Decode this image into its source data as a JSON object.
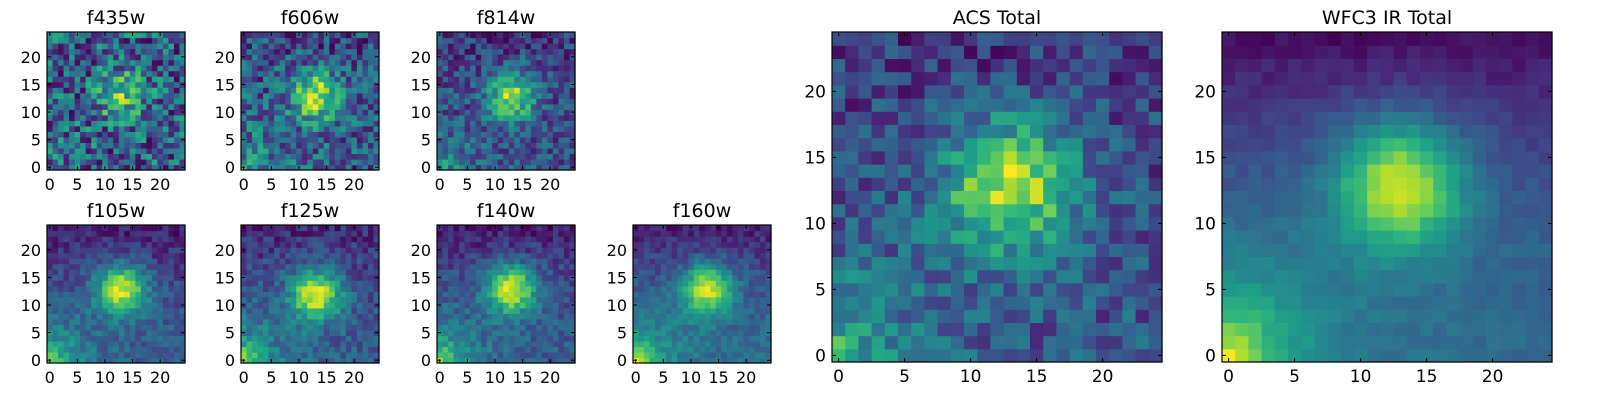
{
  "chart_data": [
    {
      "type": "heatmap",
      "title": "f435w",
      "xlim": [
        0,
        24
      ],
      "ylim": [
        0,
        24
      ],
      "xticks": [
        0,
        5,
        10,
        15,
        20
      ],
      "yticks": [
        0,
        5,
        10,
        15,
        20
      ],
      "center": [
        13,
        13
      ],
      "peak": 0.6,
      "sigma": 3,
      "noise": 0.45,
      "corner": 0.15,
      "edge": 0,
      "seed": 11
    },
    {
      "type": "heatmap",
      "title": "f606w",
      "xlim": [
        0,
        24
      ],
      "ylim": [
        0,
        24
      ],
      "xticks": [
        0,
        5,
        10,
        15,
        20
      ],
      "yticks": [
        0,
        5,
        10,
        15,
        20
      ],
      "center": [
        13,
        13
      ],
      "peak": 0.9,
      "sigma": 3,
      "noise": 0.35,
      "corner": 0.4,
      "edge": 0.1,
      "seed": 23
    },
    {
      "type": "heatmap",
      "title": "f814w",
      "xlim": [
        0,
        24
      ],
      "ylim": [
        0,
        24
      ],
      "xticks": [
        0,
        5,
        10,
        15,
        20
      ],
      "yticks": [
        0,
        5,
        10,
        15,
        20
      ],
      "center": [
        13,
        13
      ],
      "peak": 1.0,
      "sigma": 3,
      "noise": 0.3,
      "corner": 0.55,
      "edge": 0.1,
      "seed": 37
    },
    {
      "type": "heatmap",
      "title": "f105w",
      "xlim": [
        0,
        24
      ],
      "ylim": [
        0,
        24
      ],
      "xticks": [
        0,
        5,
        10,
        15,
        20
      ],
      "yticks": [
        0,
        5,
        10,
        15,
        20
      ],
      "center": [
        13,
        13
      ],
      "peak": 1.0,
      "sigma": 3.2,
      "noise": 0.15,
      "corner": 0.8,
      "edge": 0.3,
      "seed": 41
    },
    {
      "type": "heatmap",
      "title": "f125w",
      "xlim": [
        0,
        24
      ],
      "ylim": [
        0,
        24
      ],
      "xticks": [
        0,
        5,
        10,
        15,
        20
      ],
      "yticks": [
        0,
        5,
        10,
        15,
        20
      ],
      "center": [
        13,
        12
      ],
      "peak": 1.0,
      "sigma": 3.2,
      "noise": 0.18,
      "corner": 0.8,
      "edge": 0.25,
      "seed": 53
    },
    {
      "type": "heatmap",
      "title": "f140w",
      "xlim": [
        0,
        24
      ],
      "ylim": [
        0,
        24
      ],
      "xticks": [
        0,
        5,
        10,
        15,
        20
      ],
      "yticks": [
        0,
        5,
        10,
        15,
        20
      ],
      "center": [
        13,
        13
      ],
      "peak": 1.0,
      "sigma": 3.2,
      "noise": 0.16,
      "corner": 0.85,
      "edge": 0.3,
      "seed": 67
    },
    {
      "type": "heatmap",
      "title": "f160w",
      "xlim": [
        0,
        24
      ],
      "ylim": [
        0,
        24
      ],
      "xticks": [
        0,
        5,
        10,
        15,
        20
      ],
      "yticks": [
        0,
        5,
        10,
        15,
        20
      ],
      "center": [
        13,
        13
      ],
      "peak": 1.0,
      "sigma": 3.2,
      "noise": 0.14,
      "corner": 0.9,
      "edge": 0.4,
      "seed": 79
    },
    {
      "type": "heatmap",
      "title": "ACS Total",
      "xlim": [
        0,
        24
      ],
      "ylim": [
        0,
        24
      ],
      "xticks": [
        0,
        5,
        10,
        15,
        20
      ],
      "yticks": [
        0,
        5,
        10,
        15,
        20
      ],
      "center": [
        13,
        13
      ],
      "peak": 1.0,
      "sigma": 3.5,
      "noise": 0.25,
      "corner": 0.7,
      "edge": 0.15,
      "seed": 97
    },
    {
      "type": "heatmap",
      "title": "WFC3 IR Total",
      "xlim": [
        0,
        24
      ],
      "ylim": [
        0,
        24
      ],
      "xticks": [
        0,
        5,
        10,
        15,
        20
      ],
      "yticks": [
        0,
        5,
        10,
        15,
        20
      ],
      "center": [
        13,
        13
      ],
      "peak": 1.0,
      "sigma": 3.4,
      "noise": 0.06,
      "corner": 1.0,
      "edge": 0.45,
      "seed": 103
    }
  ],
  "colormap": [
    "#440154",
    "#482878",
    "#3e4989",
    "#31688e",
    "#26828e",
    "#1f9e89",
    "#35b779",
    "#6ece58",
    "#b5de2b",
    "#fde725"
  ]
}
